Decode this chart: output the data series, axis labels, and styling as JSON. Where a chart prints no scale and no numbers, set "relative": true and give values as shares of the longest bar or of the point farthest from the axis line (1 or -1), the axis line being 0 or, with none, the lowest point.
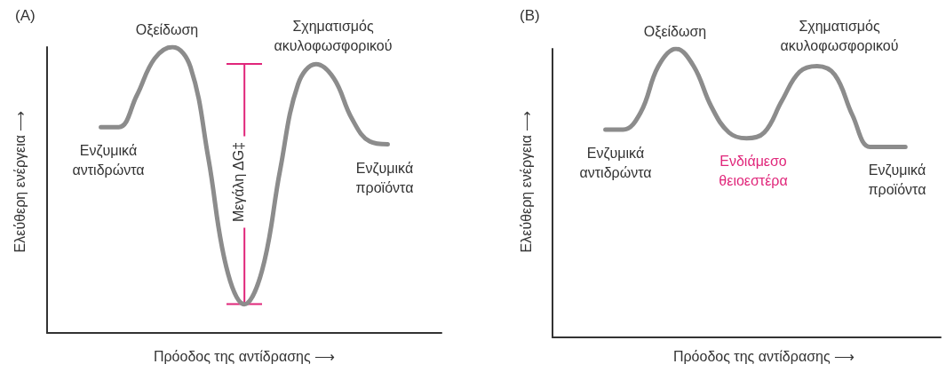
{
  "chart_data": [
    {
      "type": "line",
      "title": "(A)",
      "xlabel": "Πρόοδος της αντίδρασης ⟶",
      "ylabel": "Ελεύθερη ενέργεια ⟶",
      "relative": true,
      "marker": "none",
      "categories": [
        null,
        null,
        null,
        null,
        null,
        null,
        null,
        null,
        null,
        null,
        null,
        null,
        null,
        null,
        null,
        null,
        null,
        null,
        null,
        null,
        null,
        null,
        null
      ],
      "series": [
        {
          "color": "#8c8c8c",
          "values": [
            null,
            null,
            null,
            0.72,
            0.72,
            0.83,
            0.96,
            1.0,
            0.93,
            0.61,
            0.23,
            0.1,
            0.22,
            0.57,
            0.87,
            0.94,
            0.89,
            0.75,
            0.67,
            0.66,
            null,
            null,
            null
          ]
        }
      ],
      "annotations": [
        "Οξείδωση",
        "Σχηματισμός\nακυλοφωσφορικού",
        "Ενζυμικά\nαντιδρώντα",
        "Ενζυμικά\nπροϊόντα",
        "Μεγάλη ΔG‡"
      ]
    },
    {
      "type": "line",
      "title": "(B)",
      "xlabel": "Πρόοδος της αντίδρασης ⟶",
      "ylabel": "Ελεύθερη ενέργεια ⟶",
      "relative": true,
      "marker": "none",
      "categories": [
        null,
        null,
        null,
        null,
        null,
        null,
        null,
        null,
        null,
        null,
        null,
        null,
        null,
        null,
        null,
        null,
        null,
        null,
        null,
        null,
        null,
        null,
        null
      ],
      "series": [
        {
          "color": "#8c8c8c",
          "values": [
            null,
            null,
            null,
            0.72,
            0.72,
            0.78,
            0.94,
            1.0,
            0.94,
            0.8,
            0.71,
            0.69,
            0.71,
            0.82,
            0.92,
            0.94,
            0.91,
            0.77,
            0.66,
            0.66,
            0.66,
            null,
            null
          ]
        }
      ],
      "annotations": [
        "Οξείδωση",
        "Σχηματισμός\nακυλοφωσφορικού",
        "Ενζυμικά\nαντιδρώντα",
        {
          "text": "Ενδιάμεσο\nθειοεστέρα",
          "y": 0.69
        },
        "Ενζυμικά\nπροϊόντα"
      ]
    }
  ]
}
